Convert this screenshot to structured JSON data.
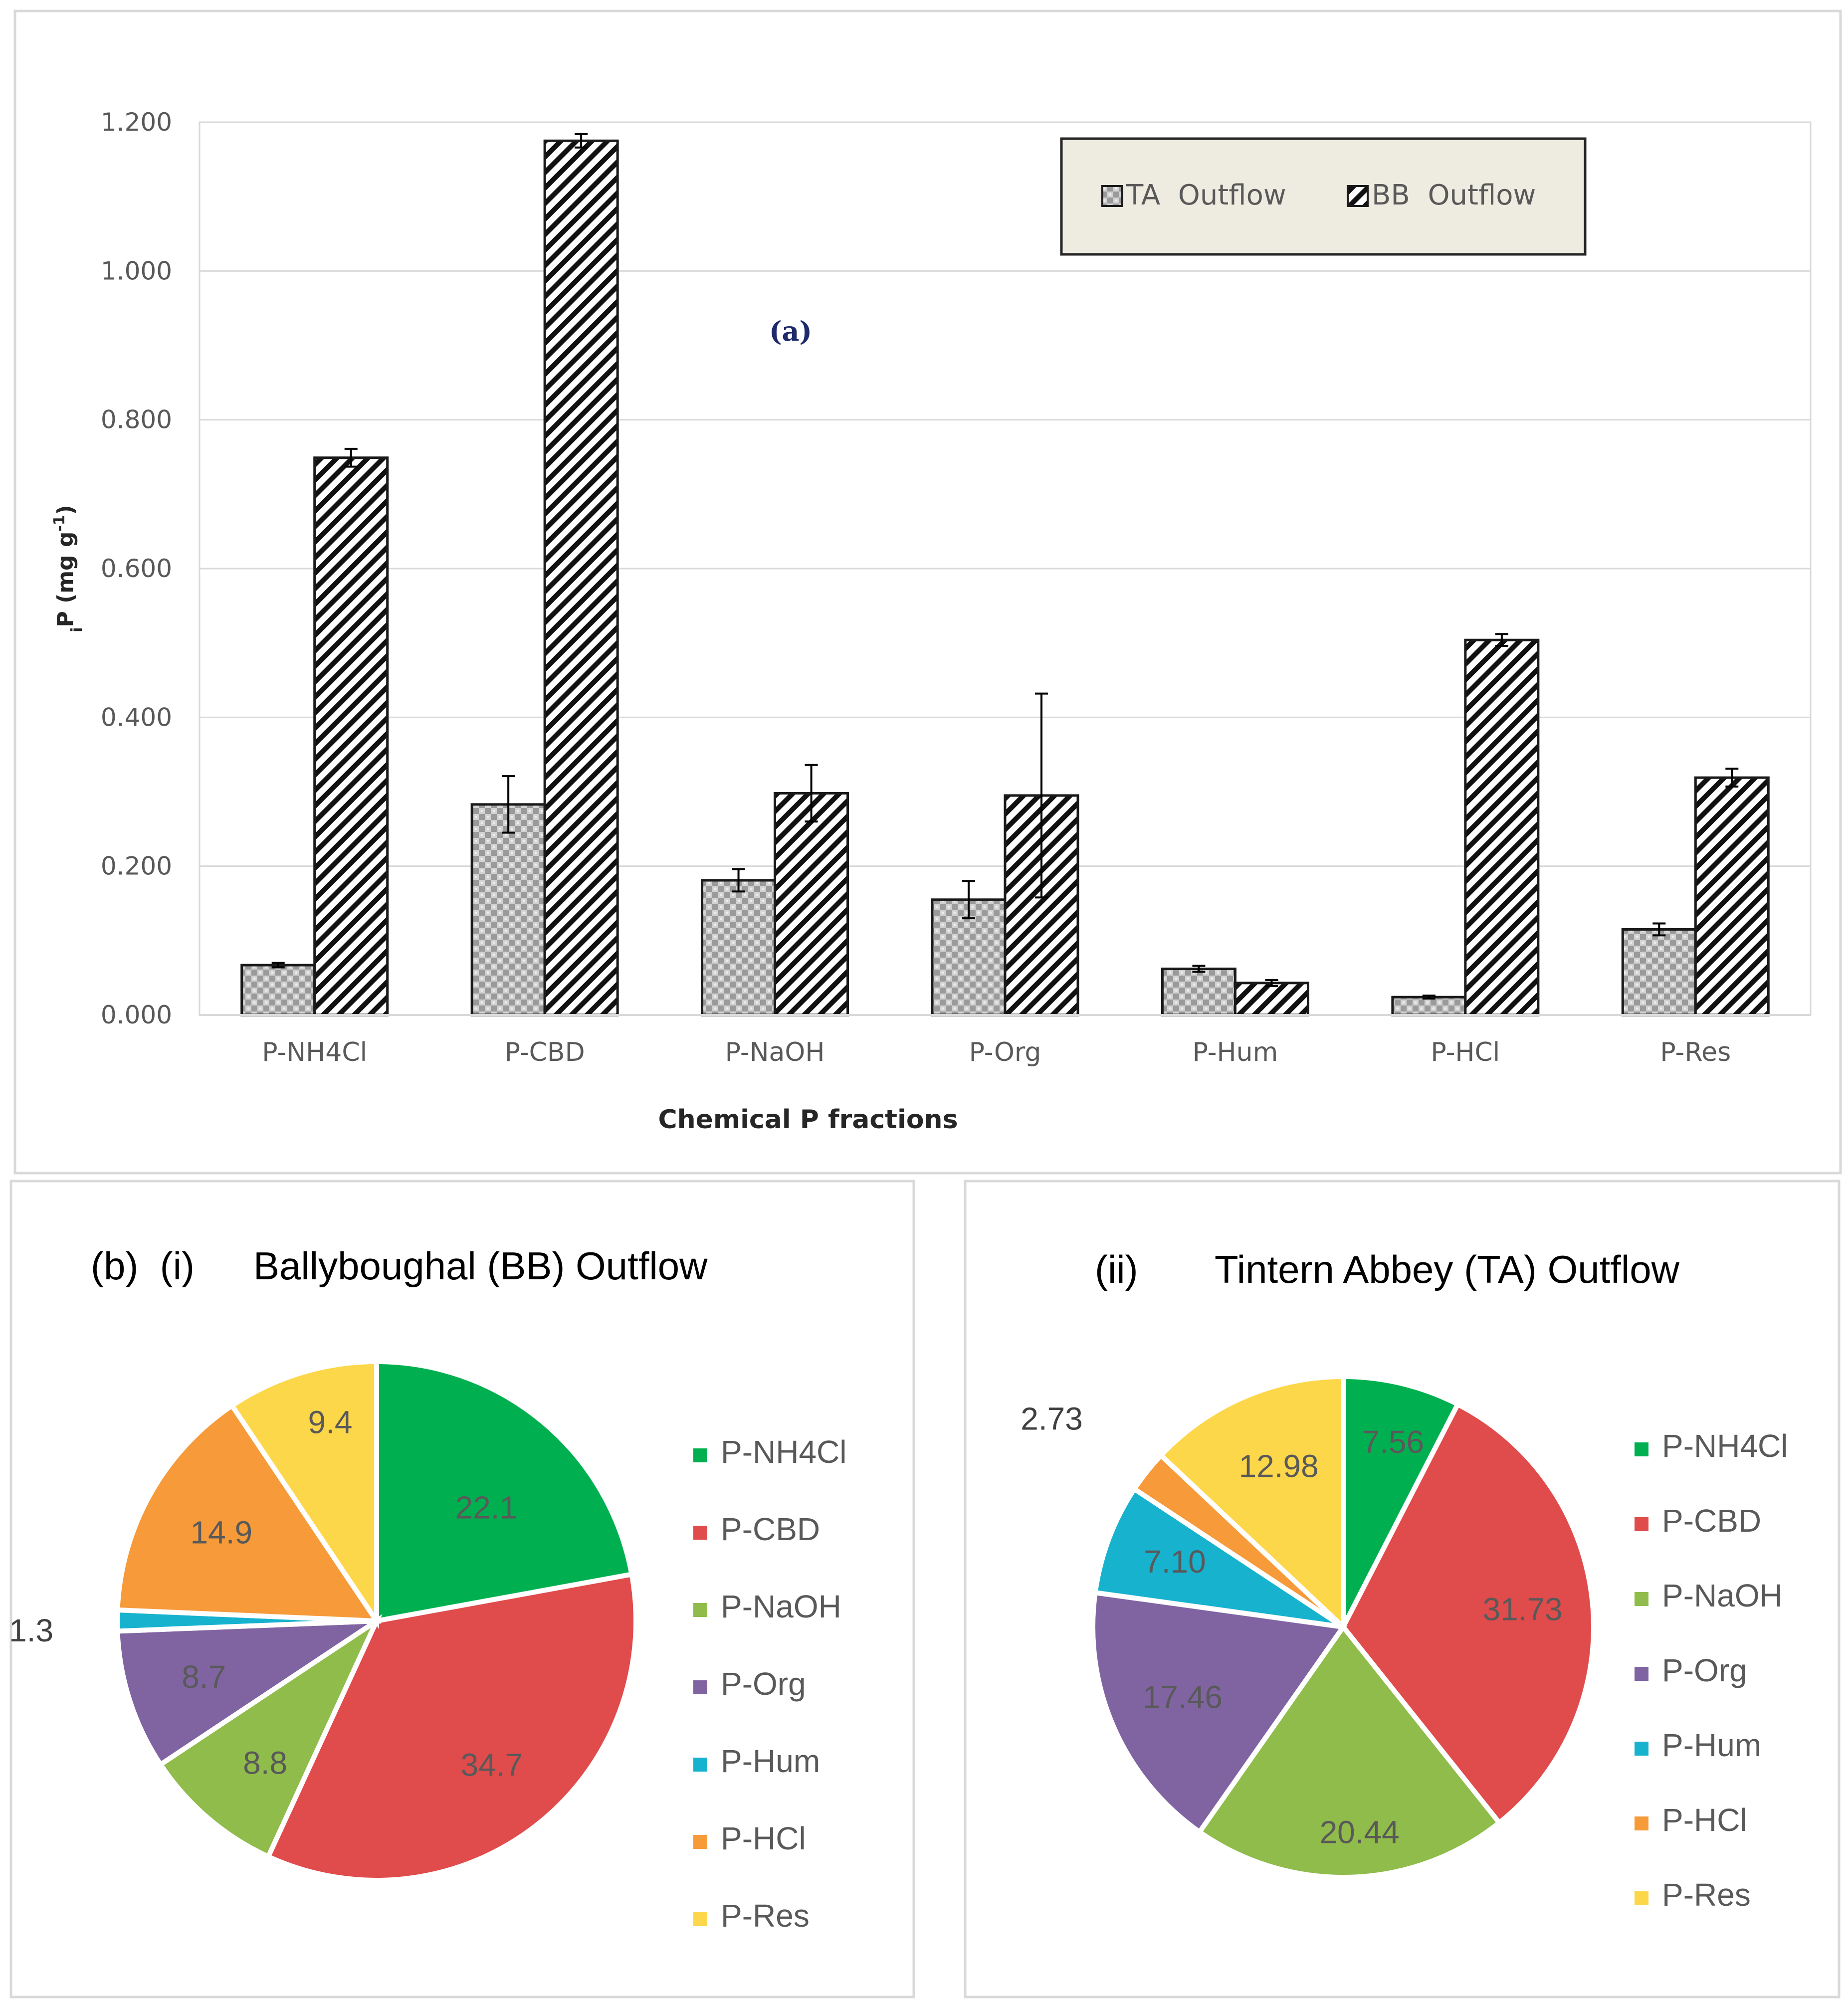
{
  "colors": {
    "frame": "#d9d9d9",
    "grid": "#d9d9d9",
    "axis_text": "#595959",
    "legend_bg": "#eeece1",
    "legend_border": "#262626",
    "bar_border": "#1a1a1a",
    "panel_label": "#1f2a6b"
  },
  "chart_data": [
    {
      "id": "a",
      "type": "bar",
      "panel_label": "(a)",
      "xlabel": "Chemical P fractions",
      "ylabel_main": "P (mg g",
      "ylabel_sub": "i",
      "ylabel_sup": "-1",
      "ylabel_close": ")",
      "ylim": [
        0,
        1.2
      ],
      "yticks": [
        "0.000",
        "0.200",
        "0.400",
        "0.600",
        "0.800",
        "1.000",
        "1.200"
      ],
      "categories": [
        "P-NH4Cl",
        "P-CBD",
        "P-NaOH",
        "P-Org",
        "P-Hum",
        "P-HCl",
        "P-Res"
      ],
      "series": [
        {
          "name": "TA  Outflow",
          "pattern": "checker",
          "values": [
            0.067,
            0.283,
            0.181,
            0.155,
            0.062,
            0.024,
            0.115
          ],
          "errors": [
            0.003,
            0.038,
            0.015,
            0.025,
            0.004,
            0.002,
            0.008
          ]
        },
        {
          "name": "BB  Outflow",
          "pattern": "diagonal",
          "values": [
            0.749,
            1.175,
            0.298,
            0.295,
            0.043,
            0.504,
            0.319
          ],
          "errors": [
            0.012,
            0.009,
            0.038,
            0.137,
            0.004,
            0.008,
            0.012
          ]
        }
      ],
      "legend_position": "top-right"
    },
    {
      "id": "b-i",
      "type": "pie",
      "title_prefix": "(b)  (i)",
      "title": "Ballyboughal (BB) Outflow",
      "labels": [
        "P-NH4Cl",
        "P-CBD",
        "P-NaOH",
        "P-Org",
        "P-Hum",
        "P-HCl",
        "P-Res"
      ],
      "values": [
        22.1,
        34.7,
        8.8,
        8.7,
        1.3,
        14.9,
        9.4
      ],
      "value_labels": [
        "22.1",
        "34.7",
        "8.8",
        "8.7",
        "1.3",
        "14.9",
        "9.4"
      ],
      "colors": [
        "#00b050",
        "#e04b4b",
        "#8fbc4a",
        "#8064a2",
        "#17b2ce",
        "#f79a3a",
        "#fdd74a"
      ],
      "legend_position": "right"
    },
    {
      "id": "b-ii",
      "type": "pie",
      "title_prefix": "(ii)",
      "title": "Tintern Abbey (TA) Outflow",
      "labels": [
        "P-NH4Cl",
        "P-CBD",
        "P-NaOH",
        "P-Org",
        "P-Hum",
        "P-HCl",
        "P-Res"
      ],
      "legend_labels": [
        "P-NH4Cl",
        "P-CBD",
        "P-NaOH",
        "P-Org",
        "P-Hum",
        "  P-HCl",
        "P-Res"
      ],
      "values": [
        7.56,
        31.73,
        20.44,
        17.46,
        7.1,
        2.73,
        12.98
      ],
      "value_labels": [
        "7.56",
        "31.73",
        "20.44",
        "17.46",
        "7.10",
        "2.73",
        "12.98"
      ],
      "colors": [
        "#00b050",
        "#e04b4b",
        "#8fbc4a",
        "#8064a2",
        "#17b2ce",
        "#f79a3a",
        "#fdd74a"
      ],
      "legend_position": "right"
    }
  ]
}
